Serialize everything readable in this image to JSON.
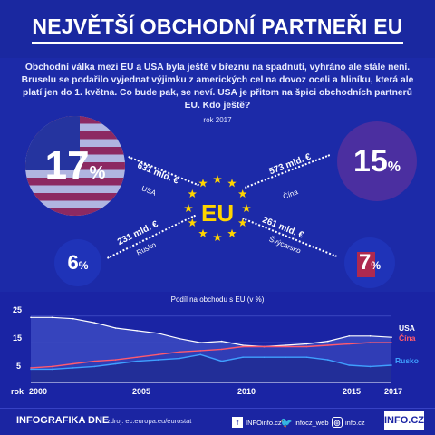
{
  "header": {
    "title": "NEJVĚTŠÍ OBCHODNÍ PARTNEŘI EU"
  },
  "intro": "Obchodní válka mezi EU a USA byla ještě v březnu na spadnutí, vyhráno ale stále není. Bruselu se podařilo vyjednat výjimku z amerických cel na dovoz oceli a hliníku, která ale platí jen do 1. května. Co bude pak, se neví. USA je přitom na špici obchodních partnerů EU. Kdo ještě?",
  "infographic": {
    "year": "rok 2017",
    "center": "EU",
    "partners": [
      {
        "id": "usa",
        "country": "USA",
        "amount": "631 mld. €",
        "share": "17",
        "sign": "%"
      },
      {
        "id": "china",
        "country": "Čína",
        "amount": "573 mld. €",
        "share": "15",
        "sign": "%"
      },
      {
        "id": "russia",
        "country": "Rusko",
        "amount": "231 mld. €",
        "share": "6",
        "sign": "%"
      },
      {
        "id": "switzerland",
        "country": "Švýcarsko",
        "amount": "261 mld. €",
        "share": "7",
        "sign": "%"
      }
    ],
    "colors": {
      "background": "#1c2aa8",
      "stars": "#ffd400",
      "china_circle": "#4b2fa0",
      "usa_red": "#c8283c"
    }
  },
  "chart_data": {
    "type": "area",
    "title": "Podíl na obchodu s EU (v %)",
    "x_prefix": "rok",
    "x": [
      2000,
      2001,
      2002,
      2003,
      2004,
      2005,
      2006,
      2007,
      2008,
      2009,
      2010,
      2011,
      2012,
      2013,
      2014,
      2015,
      2016,
      2017
    ],
    "x_ticks": [
      "2000",
      "2005",
      "2010",
      "2015",
      "2017"
    ],
    "y_ticks": [
      "25",
      "15",
      "5"
    ],
    "ylim": [
      0,
      28
    ],
    "series": [
      {
        "name": "USA",
        "color": "#ffffff",
        "values": [
          24.5,
          24.5,
          24,
          22.5,
          20.5,
          19.5,
          18.5,
          16.5,
          15,
          15.5,
          14,
          13.5,
          14,
          14.5,
          15.5,
          17.5,
          17.5,
          17
        ]
      },
      {
        "name": "Čína",
        "color": "#ff5a6e",
        "values": [
          5.5,
          6,
          7,
          8,
          8.5,
          9.5,
          10.5,
          11.5,
          12,
          12.5,
          13.5,
          13.5,
          13.5,
          13.5,
          14,
          14.5,
          15,
          15
        ]
      },
      {
        "name": "Rusko",
        "color": "#3fa0ff",
        "values": [
          5,
          5,
          5.5,
          6,
          7,
          8,
          8.5,
          9,
          10.5,
          8,
          9.5,
          9.5,
          9.5,
          9.5,
          8.5,
          6.5,
          6,
          6.5
        ]
      }
    ]
  },
  "footer": {
    "brand": "INFOGRAFIKA DNE",
    "source": "zdroj: ec.europa.eu/eurostat",
    "facebook": "INFOinfo.cz",
    "twitter": "infocz_web",
    "instagram": "info.cz",
    "logo": "INFO.CZ"
  }
}
